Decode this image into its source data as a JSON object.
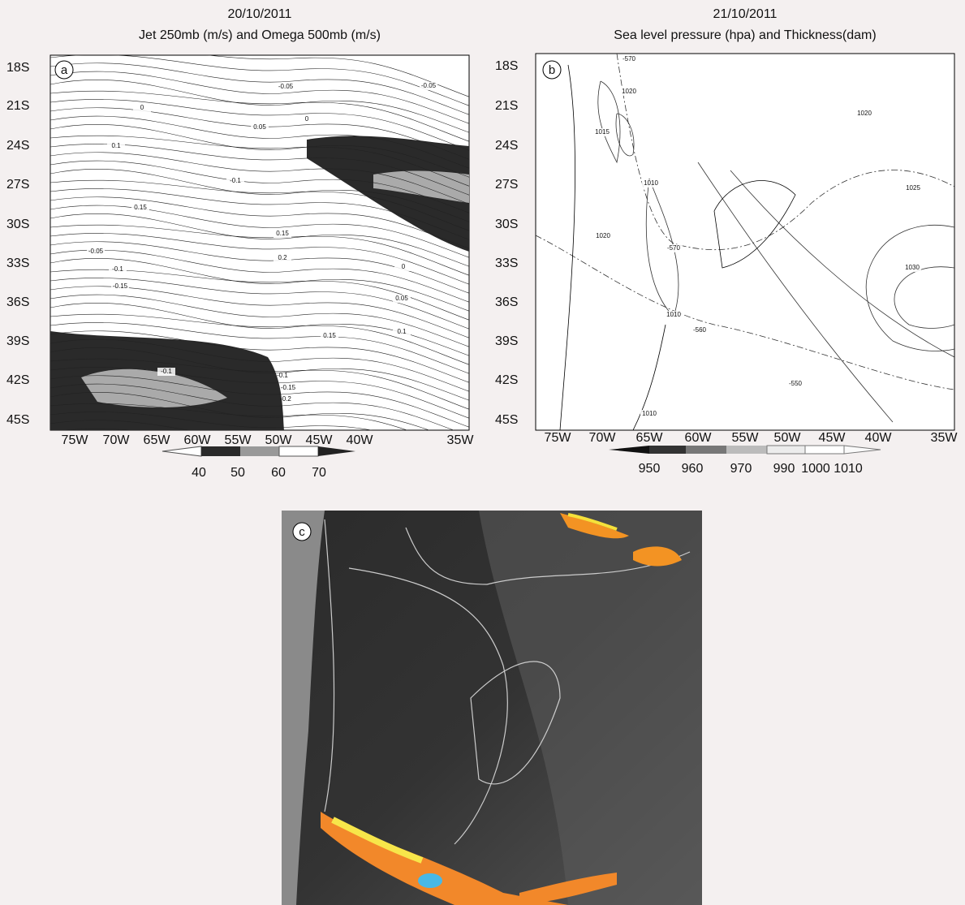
{
  "panels": [
    {
      "letter": "a",
      "date": "20/10/2011",
      "title": "Jet 250mb (m/s) and Omega 500mb (m/s)",
      "lat_labels": [
        "18S",
        "21S",
        "24S",
        "27S",
        "30S",
        "33S",
        "36S",
        "39S",
        "42S",
        "45S"
      ],
      "lon_labels": [
        "75W",
        "70W",
        "65W",
        "60W",
        "55W",
        "50W",
        "45W",
        "40W",
        "35W"
      ],
      "colorbar_labels": [
        "40",
        "50",
        "60",
        "70"
      ],
      "contour_labels": [
        "-0.05",
        "-0.05",
        "0",
        "0",
        "0.05",
        "0.1",
        "-0.1",
        "0.15",
        "0.15",
        "0.2",
        "-0.05",
        "-0.1",
        "-0.15",
        "0",
        "0.05",
        "0.1",
        "0.15",
        "-0.1",
        "-0.1",
        "-0.15",
        "-0.2"
      ]
    },
    {
      "letter": "b",
      "date": "21/10/2011",
      "title": "Sea level pressure (hpa) and Thickness(dam)",
      "lat_labels": [
        "18S",
        "21S",
        "24S",
        "27S",
        "30S",
        "33S",
        "36S",
        "39S",
        "42S",
        "45S"
      ],
      "lon_labels": [
        "75W",
        "70W",
        "65W",
        "60W",
        "55W",
        "50W",
        "45W",
        "40W",
        "35W"
      ],
      "colorbar_labels": [
        "950",
        "960",
        "970",
        "990",
        "1000",
        "1010"
      ],
      "contour_labels": [
        "-570",
        "1020",
        "1015",
        "1010",
        "1020",
        "-570",
        "1010",
        "-560",
        "-550",
        "1010",
        "1020",
        "1025",
        "1030"
      ]
    },
    {
      "letter": "c"
    }
  ]
}
